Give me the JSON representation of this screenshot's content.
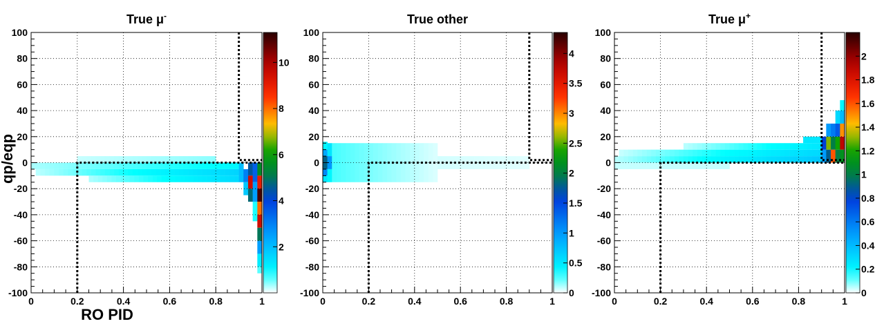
{
  "chart_data": [
    {
      "type": "heatmap",
      "title": "True μ⁻",
      "title_base": "True μ",
      "title_sup": "-",
      "xlabel": "RO PID",
      "ylabel": "qp/eqp",
      "xlim": [
        0,
        1
      ],
      "ylim": [
        -100,
        100
      ],
      "grid": true,
      "x_ticks": [
        "0",
        "0.2",
        "0.4",
        "0.6",
        "0.8",
        "1"
      ],
      "y_ticks": [
        "-100",
        "-80",
        "-60",
        "-40",
        "-20",
        "0",
        "20",
        "40",
        "60",
        "80",
        "100"
      ],
      "colorbar": {
        "min": 0,
        "max": 11.3,
        "ticks": [
          "2",
          "4",
          "6",
          "8",
          "10"
        ],
        "tick_values": [
          2,
          4,
          6,
          8,
          10
        ]
      },
      "cut_lines": [
        {
          "x": [
            0.2,
            0.2,
            1.0
          ],
          "y": [
            -100,
            0,
            0
          ]
        },
        {
          "x": [
            0.9,
            0.9,
            1.0
          ],
          "y": [
            100,
            2,
            2
          ]
        }
      ],
      "cells": [
        {
          "x0": 0.0,
          "x1": 0.9,
          "y0": -5,
          "y1": 0,
          "v0": 0.3,
          "v1": 1.0
        },
        {
          "x0": 0.02,
          "x1": 0.9,
          "y0": -10,
          "y1": -5,
          "v0": 0.25,
          "v1": 1.6
        },
        {
          "x0": 0.25,
          "x1": 0.9,
          "y0": -15,
          "y1": -10,
          "v0": 0.3,
          "v1": 1.5
        },
        {
          "x0": 0.2,
          "x1": 0.8,
          "y0": 0,
          "y1": 5,
          "v0": 0.2,
          "v1": 0.4
        },
        {
          "x0": 0.9,
          "x1": 0.92,
          "y0": -15,
          "y1": 0,
          "v": 2.0
        },
        {
          "x0": 0.92,
          "x1": 0.94,
          "y0": -15,
          "y1": -5,
          "v": 3.0
        },
        {
          "x0": 0.92,
          "x1": 0.94,
          "y0": -25,
          "y1": -15,
          "v": 1.8
        },
        {
          "x0": 0.94,
          "x1": 0.96,
          "y0": -10,
          "y1": 0,
          "v": 4.5
        },
        {
          "x0": 0.94,
          "x1": 0.96,
          "y0": -20,
          "y1": -10,
          "v": 9.5
        },
        {
          "x0": 0.94,
          "x1": 0.96,
          "y0": -30,
          "y1": -20,
          "v": 4.8
        },
        {
          "x0": 0.96,
          "x1": 0.98,
          "y0": -15,
          "y1": 0,
          "v": 3.5
        },
        {
          "x0": 0.96,
          "x1": 0.98,
          "y0": -30,
          "y1": -15,
          "v": 2.5
        },
        {
          "x0": 0.96,
          "x1": 0.98,
          "y0": -45,
          "y1": -30,
          "v": 0.8
        },
        {
          "x0": 0.98,
          "x1": 1.0,
          "y0": -10,
          "y1": 0,
          "v": 5.5
        },
        {
          "x0": 0.98,
          "x1": 1.0,
          "y0": -20,
          "y1": -10,
          "v": 9.0
        },
        {
          "x0": 0.98,
          "x1": 1.0,
          "y0": -30,
          "y1": -20,
          "v": 11.0
        },
        {
          "x0": 0.98,
          "x1": 1.0,
          "y0": -40,
          "y1": -30,
          "v": 8.0
        },
        {
          "x0": 0.98,
          "x1": 1.0,
          "y0": -50,
          "y1": -40,
          "v": 9.5
        },
        {
          "x0": 0.98,
          "x1": 1.0,
          "y0": -60,
          "y1": -50,
          "v": 5.0
        },
        {
          "x0": 0.98,
          "x1": 1.0,
          "y0": -70,
          "y1": -60,
          "v": 2.5
        },
        {
          "x0": 0.98,
          "x1": 1.0,
          "y0": -80,
          "y1": -70,
          "v": 1.2
        },
        {
          "x0": 0.98,
          "x1": 1.0,
          "y0": -85,
          "y1": -80,
          "v": 0.6
        }
      ]
    },
    {
      "type": "heatmap",
      "title": "True other",
      "title_base": "True other",
      "title_sup": "",
      "xlabel": "",
      "ylabel": "",
      "xlim": [
        0,
        1
      ],
      "ylim": [
        -100,
        100
      ],
      "grid": true,
      "x_ticks": [
        "0",
        "0.2",
        "0.4",
        "0.6",
        "0.8",
        "1"
      ],
      "y_ticks": [
        "-100",
        "-80",
        "-60",
        "-40",
        "-20",
        "0",
        "20",
        "40",
        "60",
        "80",
        "100"
      ],
      "colorbar": {
        "min": 0,
        "max": 4.35,
        "ticks": [
          "0",
          "0.5",
          "1",
          "1.5",
          "2",
          "2.5",
          "3",
          "3.5",
          "4"
        ],
        "tick_values": [
          0,
          0.5,
          1,
          1.5,
          2,
          2.5,
          3,
          3.5,
          4
        ]
      },
      "cut_lines": [
        {
          "x": [
            0.2,
            0.2,
            1.0
          ],
          "y": [
            -100,
            0,
            0
          ]
        },
        {
          "x": [
            0.9,
            0.9,
            1.0
          ],
          "y": [
            100,
            2,
            2
          ]
        }
      ],
      "cells": [
        {
          "x0": 0.0,
          "x1": 0.02,
          "y0": 10,
          "y1": 16,
          "v": 0.4
        },
        {
          "x0": 0.0,
          "x1": 0.02,
          "y0": 5,
          "y1": 10,
          "v": 0.9
        },
        {
          "x0": 0.0,
          "x1": 0.02,
          "y0": -5,
          "y1": 5,
          "v": 1.8
        },
        {
          "x0": 0.0,
          "x1": 0.02,
          "y0": -10,
          "y1": -5,
          "v": 1.1
        },
        {
          "x0": 0.0,
          "x1": 0.02,
          "y0": -15,
          "y1": -10,
          "v": 0.5
        },
        {
          "x0": 0.02,
          "x1": 0.04,
          "y0": 5,
          "y1": 15,
          "v": 0.5
        },
        {
          "x0": 0.02,
          "x1": 0.04,
          "y0": -5,
          "y1": 5,
          "v": 1.0
        },
        {
          "x0": 0.02,
          "x1": 0.04,
          "y0": -15,
          "y1": -5,
          "v": 0.4
        },
        {
          "x0": 0.04,
          "x1": 0.5,
          "y0": -15,
          "y1": 15,
          "v0": 0.25,
          "v1": 0.05
        },
        {
          "x0": 0.5,
          "x1": 0.9,
          "y0": -5,
          "y1": 5,
          "v0": 0.06,
          "v1": 0.04
        }
      ]
    },
    {
      "type": "heatmap",
      "title": "True μ⁺",
      "title_base": "True μ",
      "title_sup": "+",
      "xlabel": "",
      "ylabel": "",
      "xlim": [
        0,
        1
      ],
      "ylim": [
        -100,
        100
      ],
      "grid": true,
      "x_ticks": [
        "0",
        "0.2",
        "0.4",
        "0.6",
        "0.8",
        "1"
      ],
      "y_ticks": [
        "-100",
        "-80",
        "-60",
        "-40",
        "-20",
        "0",
        "20",
        "40",
        "60",
        "80",
        "100"
      ],
      "colorbar": {
        "min": 0,
        "max": 2.2,
        "ticks": [
          "0",
          "0.2",
          "0.4",
          "0.6",
          "0.8",
          "1",
          "1.2",
          "1.4",
          "1.6",
          "1.8",
          "2"
        ],
        "tick_values": [
          0,
          0.2,
          0.4,
          0.6,
          0.8,
          1,
          1.2,
          1.4,
          1.6,
          1.8,
          2
        ]
      },
      "cut_lines": [
        {
          "x": [
            0.2,
            0.2,
            1.0
          ],
          "y": [
            -100,
            0,
            0
          ]
        },
        {
          "x": [
            0.9,
            0.9,
            1.0
          ],
          "y": [
            100,
            2,
            2
          ]
        }
      ],
      "cells": [
        {
          "x0": 0.0,
          "x1": 0.9,
          "y0": 0,
          "y1": 5,
          "v0": 0.05,
          "v1": 0.35
        },
        {
          "x0": 0.02,
          "x1": 0.9,
          "y0": 5,
          "y1": 10,
          "v0": 0.04,
          "v1": 0.3
        },
        {
          "x0": 0.3,
          "x1": 0.9,
          "y0": 10,
          "y1": 15,
          "v0": 0.05,
          "v1": 0.25
        },
        {
          "x0": 0.82,
          "x1": 0.9,
          "y0": 15,
          "y1": 20,
          "v": 0.25
        },
        {
          "x0": 0.0,
          "x1": 0.5,
          "y0": -5,
          "y1": 0,
          "v": 0.04
        },
        {
          "x0": 0.9,
          "x1": 0.92,
          "y0": 0,
          "y1": 10,
          "v": 0.5
        },
        {
          "x0": 0.9,
          "x1": 0.92,
          "y0": 10,
          "y1": 20,
          "v": 0.8
        },
        {
          "x0": 0.92,
          "x1": 0.94,
          "y0": 0,
          "y1": 10,
          "v": 0.9
        },
        {
          "x0": 0.92,
          "x1": 0.94,
          "y0": 10,
          "y1": 20,
          "v": 1.3
        },
        {
          "x0": 0.92,
          "x1": 0.94,
          "y0": 20,
          "y1": 30,
          "v": 0.5
        },
        {
          "x0": 0.94,
          "x1": 0.96,
          "y0": 0,
          "y1": 10,
          "v": 1.6
        },
        {
          "x0": 0.94,
          "x1": 0.96,
          "y0": 10,
          "y1": 20,
          "v": 1.0
        },
        {
          "x0": 0.94,
          "x1": 0.96,
          "y0": 20,
          "y1": 30,
          "v": 0.6
        },
        {
          "x0": 0.96,
          "x1": 0.98,
          "y0": 0,
          "y1": 10,
          "v": 1.0
        },
        {
          "x0": 0.96,
          "x1": 0.98,
          "y0": 10,
          "y1": 20,
          "v": 1.2
        },
        {
          "x0": 0.96,
          "x1": 0.98,
          "y0": 20,
          "y1": 30,
          "v": 0.7
        },
        {
          "x0": 0.96,
          "x1": 0.98,
          "y0": 30,
          "y1": 40,
          "v": 0.3
        },
        {
          "x0": 0.98,
          "x1": 1.0,
          "y0": 0,
          "y1": 10,
          "v": 1.1
        },
        {
          "x0": 0.98,
          "x1": 1.0,
          "y0": 10,
          "y1": 20,
          "v": 1.9
        },
        {
          "x0": 0.98,
          "x1": 1.0,
          "y0": 20,
          "y1": 30,
          "v": 1.5
        },
        {
          "x0": 0.98,
          "x1": 1.0,
          "y0": 30,
          "y1": 40,
          "v": 0.4
        },
        {
          "x0": 0.98,
          "x1": 1.0,
          "y0": 40,
          "y1": 48,
          "v": 0.2
        }
      ]
    }
  ]
}
